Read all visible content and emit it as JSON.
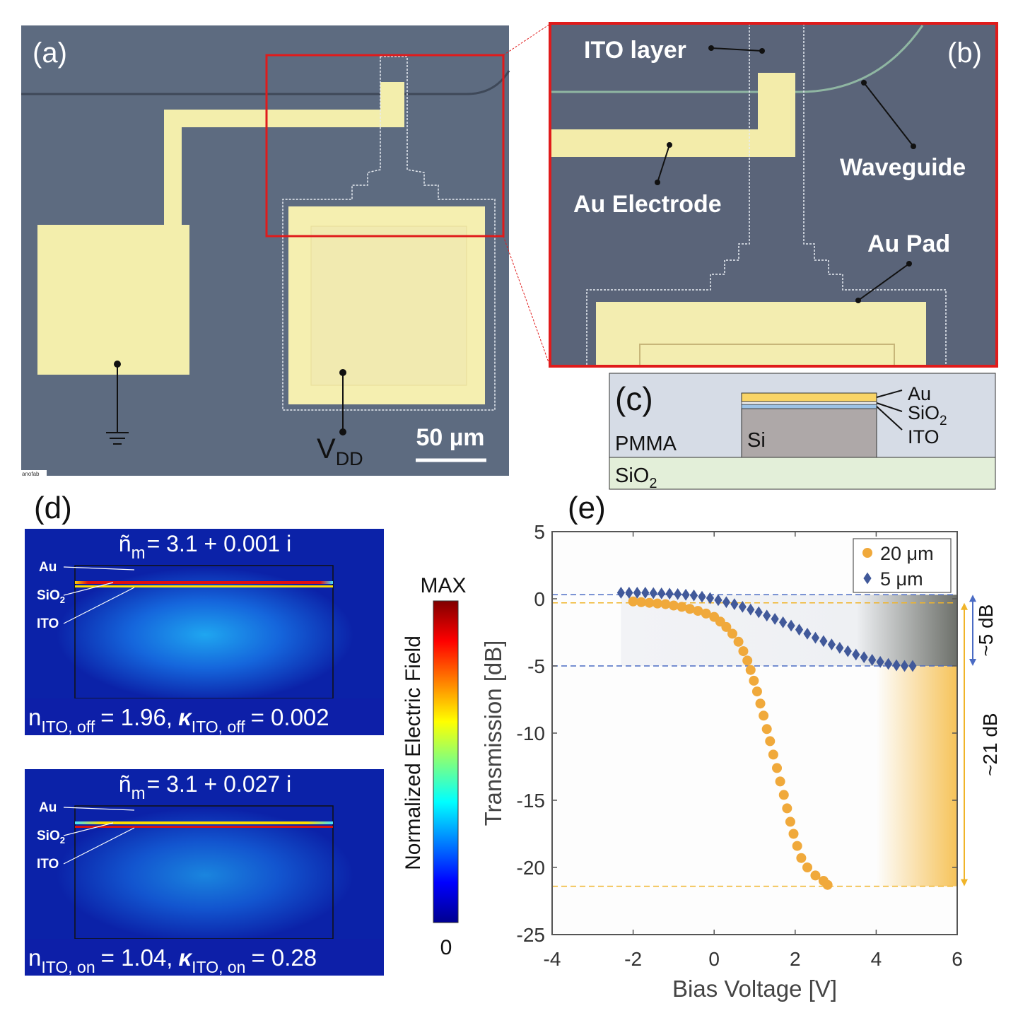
{
  "panel_a": {
    "label": "(a)",
    "vdd": {
      "main": "V",
      "sub": "DD"
    },
    "scale_bar": "50 µm",
    "watermark": "anofab"
  },
  "panel_b": {
    "label": "(b)",
    "ito_layer": "ITO layer",
    "waveguide": "Waveguide",
    "au_electrode": "Au Electrode",
    "au_pad": "Au Pad"
  },
  "panel_c": {
    "label": "(c)",
    "pmma": "PMMA",
    "si": "Si",
    "substrate": {
      "main": "SiO",
      "sub": "2"
    },
    "layers": {
      "au": "Au",
      "sio2": {
        "main": "SiO",
        "sub": "2"
      },
      "ito": "ITO"
    }
  },
  "panel_d": {
    "label": "(d)",
    "fields": [
      {
        "index": {
          "symbol": "ñ",
          "sub": "m",
          "text": "= 3.1 + 0.001 i"
        },
        "labels": {
          "au": "Au",
          "sio2": {
            "main": "SiO",
            "sub": "2"
          },
          "ito": "ITO"
        },
        "bottom": {
          "n": "n",
          "n_sub": "ITO, off",
          "n_text": "= 1.96,",
          "k": "κ",
          "k_sub": "ITO, off",
          "k_text": "= 0.002"
        }
      },
      {
        "index": {
          "symbol": "ñ",
          "sub": "m",
          "text": "= 3.1 + 0.027 i"
        },
        "labels": {
          "au": "Au",
          "sio2": {
            "main": "SiO",
            "sub": "2"
          },
          "ito": "ITO"
        },
        "bottom": {
          "n": "n",
          "n_sub": "ITO, on",
          "n_text": "= 1.04,",
          "k": "κ",
          "k_sub": "ITO, on",
          "k_text": "= 0.28"
        }
      }
    ],
    "colorbar": {
      "max": "MAX",
      "min": "0",
      "label": "Normalized Electric Field"
    }
  },
  "panel_e": {
    "label": "(e)"
  },
  "chart_data": {
    "type": "scatter",
    "xlabel": "Bias Voltage [V]",
    "ylabel": "Transmission [dB]",
    "xlim": [
      -4,
      6
    ],
    "ylim": [
      -25,
      5
    ],
    "xticks": [
      -4,
      -2,
      0,
      2,
      4,
      6
    ],
    "yticks": [
      5,
      0,
      -5,
      -10,
      -15,
      -20,
      -25
    ],
    "legend": "upper right",
    "series": [
      {
        "name": "20 μm",
        "color": "#f0a93b",
        "marker": "circle",
        "x": [
          -2,
          -1.8,
          -1.6,
          -1.4,
          -1.2,
          -1.0,
          -0.8,
          -0.6,
          -0.4,
          -0.2,
          0,
          0.15,
          0.3,
          0.45,
          0.6,
          0.72,
          0.82,
          0.9,
          0.98,
          1.06,
          1.14,
          1.22,
          1.3,
          1.38,
          1.46,
          1.55,
          1.63,
          1.72,
          1.8,
          1.88,
          1.96,
          2.05,
          2.15,
          2.3,
          2.5,
          2.7,
          2.8
        ],
        "values": [
          -0.2,
          -0.25,
          -0.3,
          -0.35,
          -0.4,
          -0.5,
          -0.6,
          -0.75,
          -0.9,
          -1.1,
          -1.35,
          -1.7,
          -2.1,
          -2.6,
          -3.2,
          -3.9,
          -4.6,
          -5.3,
          -6.1,
          -6.9,
          -7.8,
          -8.7,
          -9.7,
          -10.6,
          -11.6,
          -12.6,
          -13.6,
          -14.6,
          -15.6,
          -16.6,
          -17.5,
          -18.4,
          -19.3,
          -20.0,
          -20.6,
          -21.0,
          -21.3
        ]
      },
      {
        "name": "5 μm",
        "color": "#41599a",
        "marker": "diamond",
        "x": [
          -2.3,
          -2.1,
          -1.9,
          -1.7,
          -1.5,
          -1.3,
          -1.1,
          -0.9,
          -0.7,
          -0.5,
          -0.3,
          -0.1,
          0.1,
          0.3,
          0.5,
          0.7,
          0.9,
          1.1,
          1.3,
          1.5,
          1.7,
          1.9,
          2.1,
          2.3,
          2.5,
          2.7,
          2.9,
          3.1,
          3.3,
          3.5,
          3.7,
          3.9,
          4.1,
          4.3,
          4.5,
          4.7,
          4.9
        ],
        "values": [
          0.45,
          0.45,
          0.45,
          0.45,
          0.42,
          0.4,
          0.38,
          0.35,
          0.3,
          0.25,
          0.15,
          0.05,
          -0.1,
          -0.25,
          -0.4,
          -0.6,
          -0.8,
          -1.0,
          -1.25,
          -1.5,
          -1.75,
          -2.0,
          -2.3,
          -2.6,
          -2.9,
          -3.15,
          -3.4,
          -3.65,
          -3.9,
          -4.15,
          -4.35,
          -4.55,
          -4.7,
          -4.85,
          -4.95,
          -5.0,
          -5.0
        ]
      }
    ],
    "hlines": [
      {
        "value": 0.3,
        "color": "#4a6bc4"
      },
      {
        "value": -5,
        "color": "#4a6bc4"
      },
      {
        "value": -0.3,
        "color": "#f0b429"
      },
      {
        "value": -21.4,
        "color": "#f0b429"
      }
    ],
    "annotations": [
      {
        "text": "~5 dB",
        "color": "#4a6bc4"
      },
      {
        "text": "~21 dB",
        "color": "#f0b429"
      }
    ]
  }
}
